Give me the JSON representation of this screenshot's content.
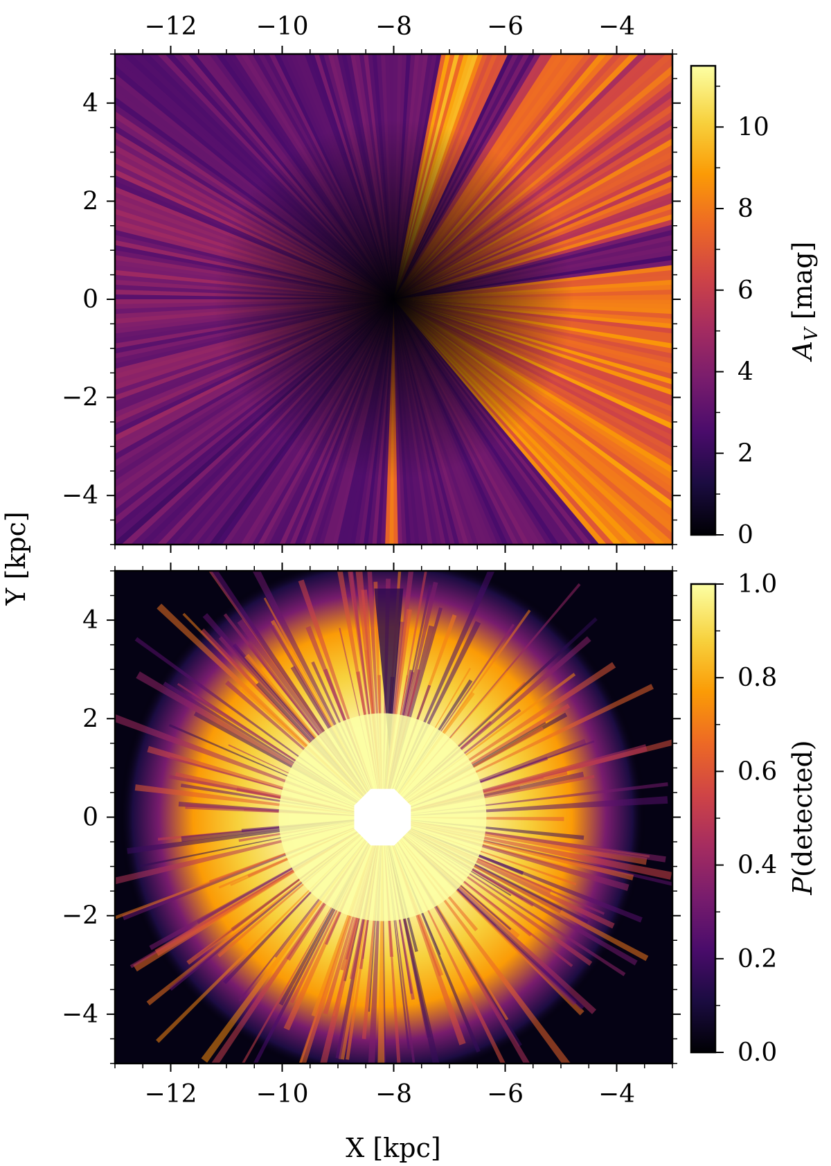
{
  "chart_data": [
    {
      "type": "heatmap",
      "panel": "top",
      "quantity": "extinction map",
      "xlim": [
        -13,
        -3
      ],
      "ylim": [
        -5,
        5
      ],
      "x_ticks": [
        "−12",
        "−10",
        "−8",
        "−6",
        "−4"
      ],
      "x_tick_values": [
        -12,
        -10,
        -8,
        -6,
        -4
      ],
      "x_ticks_position": "top",
      "y_ticks": [
        "4",
        "2",
        "0",
        "−2",
        "−4"
      ],
      "y_tick_values": [
        4,
        2,
        0,
        -2,
        -4
      ],
      "colormap": "inferno",
      "colorbar": {
        "label_main": "A",
        "label_sub": "V",
        "label_unit": "[mag]",
        "range": [
          0,
          11.5
        ],
        "ticks": [
          "0",
          "2",
          "4",
          "6",
          "8",
          "10"
        ],
        "tick_values": [
          0,
          2,
          4,
          6,
          8,
          10
        ]
      },
      "center": [
        -8,
        0
      ],
      "description_values": "radial streaks from observer; low near center, highest (~9-11 mag) toward right edge"
    },
    {
      "type": "heatmap",
      "panel": "bottom",
      "xlim": [
        -13,
        -3
      ],
      "ylim": [
        -5,
        5
      ],
      "x_ticks": [
        "−12",
        "−10",
        "−8",
        "−6",
        "−4"
      ],
      "x_tick_values": [
        -12,
        -10,
        -8,
        -6,
        -4
      ],
      "xlabel": "X [kpc]",
      "y_ticks": [
        "4",
        "2",
        "0",
        "−2",
        "−4"
      ],
      "y_tick_values": [
        4,
        2,
        0,
        -2,
        -4
      ],
      "colormap": "inferno",
      "colorbar": {
        "label": "P(detected)",
        "label_italic_part": "P",
        "label_rest": "(detected)",
        "range": [
          0,
          1
        ],
        "ticks": [
          "0.0",
          "0.2",
          "0.4",
          "0.6",
          "0.8",
          "1.0"
        ],
        "tick_values": [
          0,
          0.2,
          0.4,
          0.6,
          0.8,
          1.0
        ]
      },
      "center": [
        -8.2,
        0
      ],
      "masked_hole_radius": 0.55
    }
  ],
  "shared": {
    "ylabel": "Y [kpc]"
  },
  "colors": {
    "inferno": [
      "#000004",
      "#1b0c41",
      "#4a0c6b",
      "#781c6d",
      "#a52c60",
      "#cf4446",
      "#ed6925",
      "#fb9b06",
      "#f7d13d",
      "#fcffa4"
    ]
  }
}
